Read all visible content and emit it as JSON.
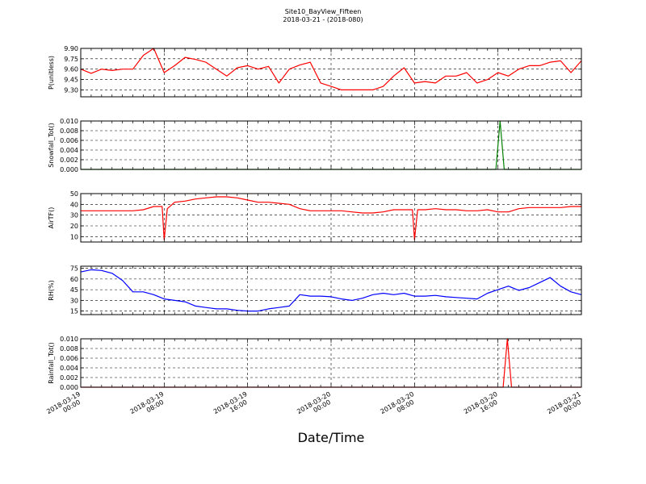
{
  "title": "Site10_BayView_Fifteen",
  "subtitle": "2018-03-21 - (2018-080)",
  "xlabel": "Date/Time",
  "colors": {
    "pressure": "#ff0000",
    "snowfall": "#008000",
    "airtemp": "#ff0000",
    "rh": "#0000ff",
    "rainfall": "#ff0000"
  },
  "chart_data": [
    {
      "type": "line",
      "ylabel": "P(unitless)",
      "ylim": [
        9.2,
        9.9
      ],
      "yticks": [
        "9.90",
        "9.75",
        "9.60",
        "9.45",
        "9.30"
      ],
      "ytick_values": [
        9.9,
        9.75,
        9.6,
        9.45,
        9.3
      ],
      "grid": true,
      "series": [
        {
          "color": "#ff0000",
          "x_hours": [
            0,
            1,
            2,
            3,
            4,
            5,
            6,
            7,
            8,
            9,
            10,
            11,
            12,
            13,
            14,
            15,
            16,
            17,
            18,
            19,
            20,
            21,
            22,
            23,
            24,
            25,
            26,
            27,
            28,
            29,
            30,
            31,
            32,
            33,
            34,
            35,
            36,
            37,
            38,
            39,
            40,
            41,
            42,
            43,
            44,
            45,
            46,
            47,
            48
          ],
          "y": [
            9.6,
            9.54,
            9.6,
            9.58,
            9.6,
            9.6,
            9.8,
            9.9,
            9.55,
            9.65,
            9.77,
            9.74,
            9.7,
            9.6,
            9.5,
            9.62,
            9.65,
            9.6,
            9.64,
            9.4,
            9.6,
            9.66,
            9.7,
            9.4,
            9.35,
            9.3,
            9.3,
            9.3,
            9.3,
            9.35,
            9.5,
            9.62,
            9.4,
            9.42,
            9.4,
            9.5,
            9.5,
            9.55,
            9.4,
            9.45,
            9.55,
            9.5,
            9.6,
            9.65,
            9.65,
            9.7,
            9.72,
            9.55,
            9.72
          ]
        }
      ]
    },
    {
      "type": "line",
      "ylabel": "Snowfall_Tot()",
      "ylim": [
        0,
        0.01
      ],
      "yticks": [
        "0.010",
        "0.008",
        "0.006",
        "0.004",
        "0.002",
        "0.000"
      ],
      "ytick_values": [
        0.01,
        0.008,
        0.006,
        0.004,
        0.002,
        0.0
      ],
      "grid": true,
      "series": [
        {
          "color": "#008000",
          "x_hours": [
            0,
            39.8,
            40.2,
            40.6,
            48
          ],
          "y": [
            0,
            0,
            0.01,
            0,
            0
          ]
        }
      ]
    },
    {
      "type": "line",
      "ylabel": "AirTF()",
      "ylim": [
        5,
        50
      ],
      "yticks": [
        "50",
        "40",
        "30",
        "20",
        "10"
      ],
      "ytick_values": [
        50,
        40,
        30,
        20,
        10
      ],
      "grid": true,
      "series": [
        {
          "color": "#ff0000",
          "x_hours": [
            0,
            1,
            2,
            3,
            4,
            5,
            6,
            7,
            7.8,
            8,
            8.3,
            9,
            10,
            11,
            12,
            13,
            14,
            15,
            16,
            17,
            18,
            19,
            20,
            21,
            22,
            23,
            24,
            25,
            26,
            27,
            28,
            29,
            30,
            31,
            31.8,
            32,
            32.3,
            33,
            34,
            35,
            36,
            37,
            38,
            39,
            40,
            41,
            42,
            43,
            44,
            45,
            46,
            47,
            48
          ],
          "y": [
            34,
            34,
            34,
            34,
            34,
            34,
            35,
            38,
            38,
            7,
            36,
            42,
            43,
            45,
            46,
            47,
            47,
            46,
            44,
            42,
            42,
            41,
            40,
            36,
            34,
            34,
            34,
            34,
            33,
            32,
            32,
            33,
            35,
            35,
            35,
            7,
            35,
            35,
            36,
            35,
            35,
            34,
            34,
            35,
            33,
            33,
            36,
            37,
            37,
            37,
            37,
            38,
            38
          ]
        }
      ]
    },
    {
      "type": "line",
      "ylabel": "RH(%)",
      "ylim": [
        10,
        78
      ],
      "yticks": [
        "75",
        "60",
        "45",
        "30",
        "15"
      ],
      "ytick_values": [
        75,
        60,
        45,
        30,
        15
      ],
      "grid": true,
      "series": [
        {
          "color": "#0000ff",
          "x_hours": [
            0,
            1,
            2,
            3,
            4,
            5,
            6,
            7,
            8,
            9,
            10,
            11,
            12,
            13,
            14,
            15,
            16,
            17,
            18,
            19,
            20,
            21,
            22,
            23,
            24,
            25,
            26,
            27,
            28,
            29,
            30,
            31,
            32,
            33,
            34,
            35,
            36,
            37,
            38,
            39,
            40,
            41,
            42,
            43,
            44,
            45,
            46,
            47,
            48
          ],
          "y": [
            70,
            73,
            72,
            68,
            58,
            42,
            42,
            38,
            32,
            30,
            28,
            22,
            20,
            18,
            18,
            16,
            15,
            15,
            18,
            20,
            22,
            38,
            36,
            36,
            35,
            32,
            30,
            33,
            38,
            40,
            38,
            40,
            36,
            36,
            37,
            35,
            34,
            33,
            32,
            40,
            45,
            50,
            44,
            48,
            55,
            62,
            50,
            42,
            38
          ]
        }
      ]
    },
    {
      "type": "line",
      "ylabel": "Rainfall_Tot()",
      "ylim": [
        0,
        0.01
      ],
      "yticks": [
        "0.010",
        "0.008",
        "0.006",
        "0.004",
        "0.002",
        "0.000"
      ],
      "ytick_values": [
        0.01,
        0.008,
        0.006,
        0.004,
        0.002,
        0.0
      ],
      "grid": true,
      "series": [
        {
          "color": "#ff0000",
          "x_hours": [
            0,
            40.5,
            40.9,
            41.3,
            48
          ],
          "y": [
            0,
            0,
            0.01,
            0,
            0
          ]
        }
      ]
    }
  ],
  "x_axis": {
    "range_hours": [
      0,
      48
    ],
    "tick_hours": [
      0,
      8,
      16,
      24,
      32,
      40,
      48
    ],
    "tick_labels": [
      [
        "2018-03-19",
        "00:00"
      ],
      [
        "2018-03-19",
        "08:00"
      ],
      [
        "2018-03-19",
        "16:00"
      ],
      [
        "2018-03-20",
        "00:00"
      ],
      [
        "2018-03-20",
        "08:00"
      ],
      [
        "2018-03-20",
        "16:00"
      ],
      [
        "2018-03-21",
        "00:00"
      ]
    ]
  }
}
